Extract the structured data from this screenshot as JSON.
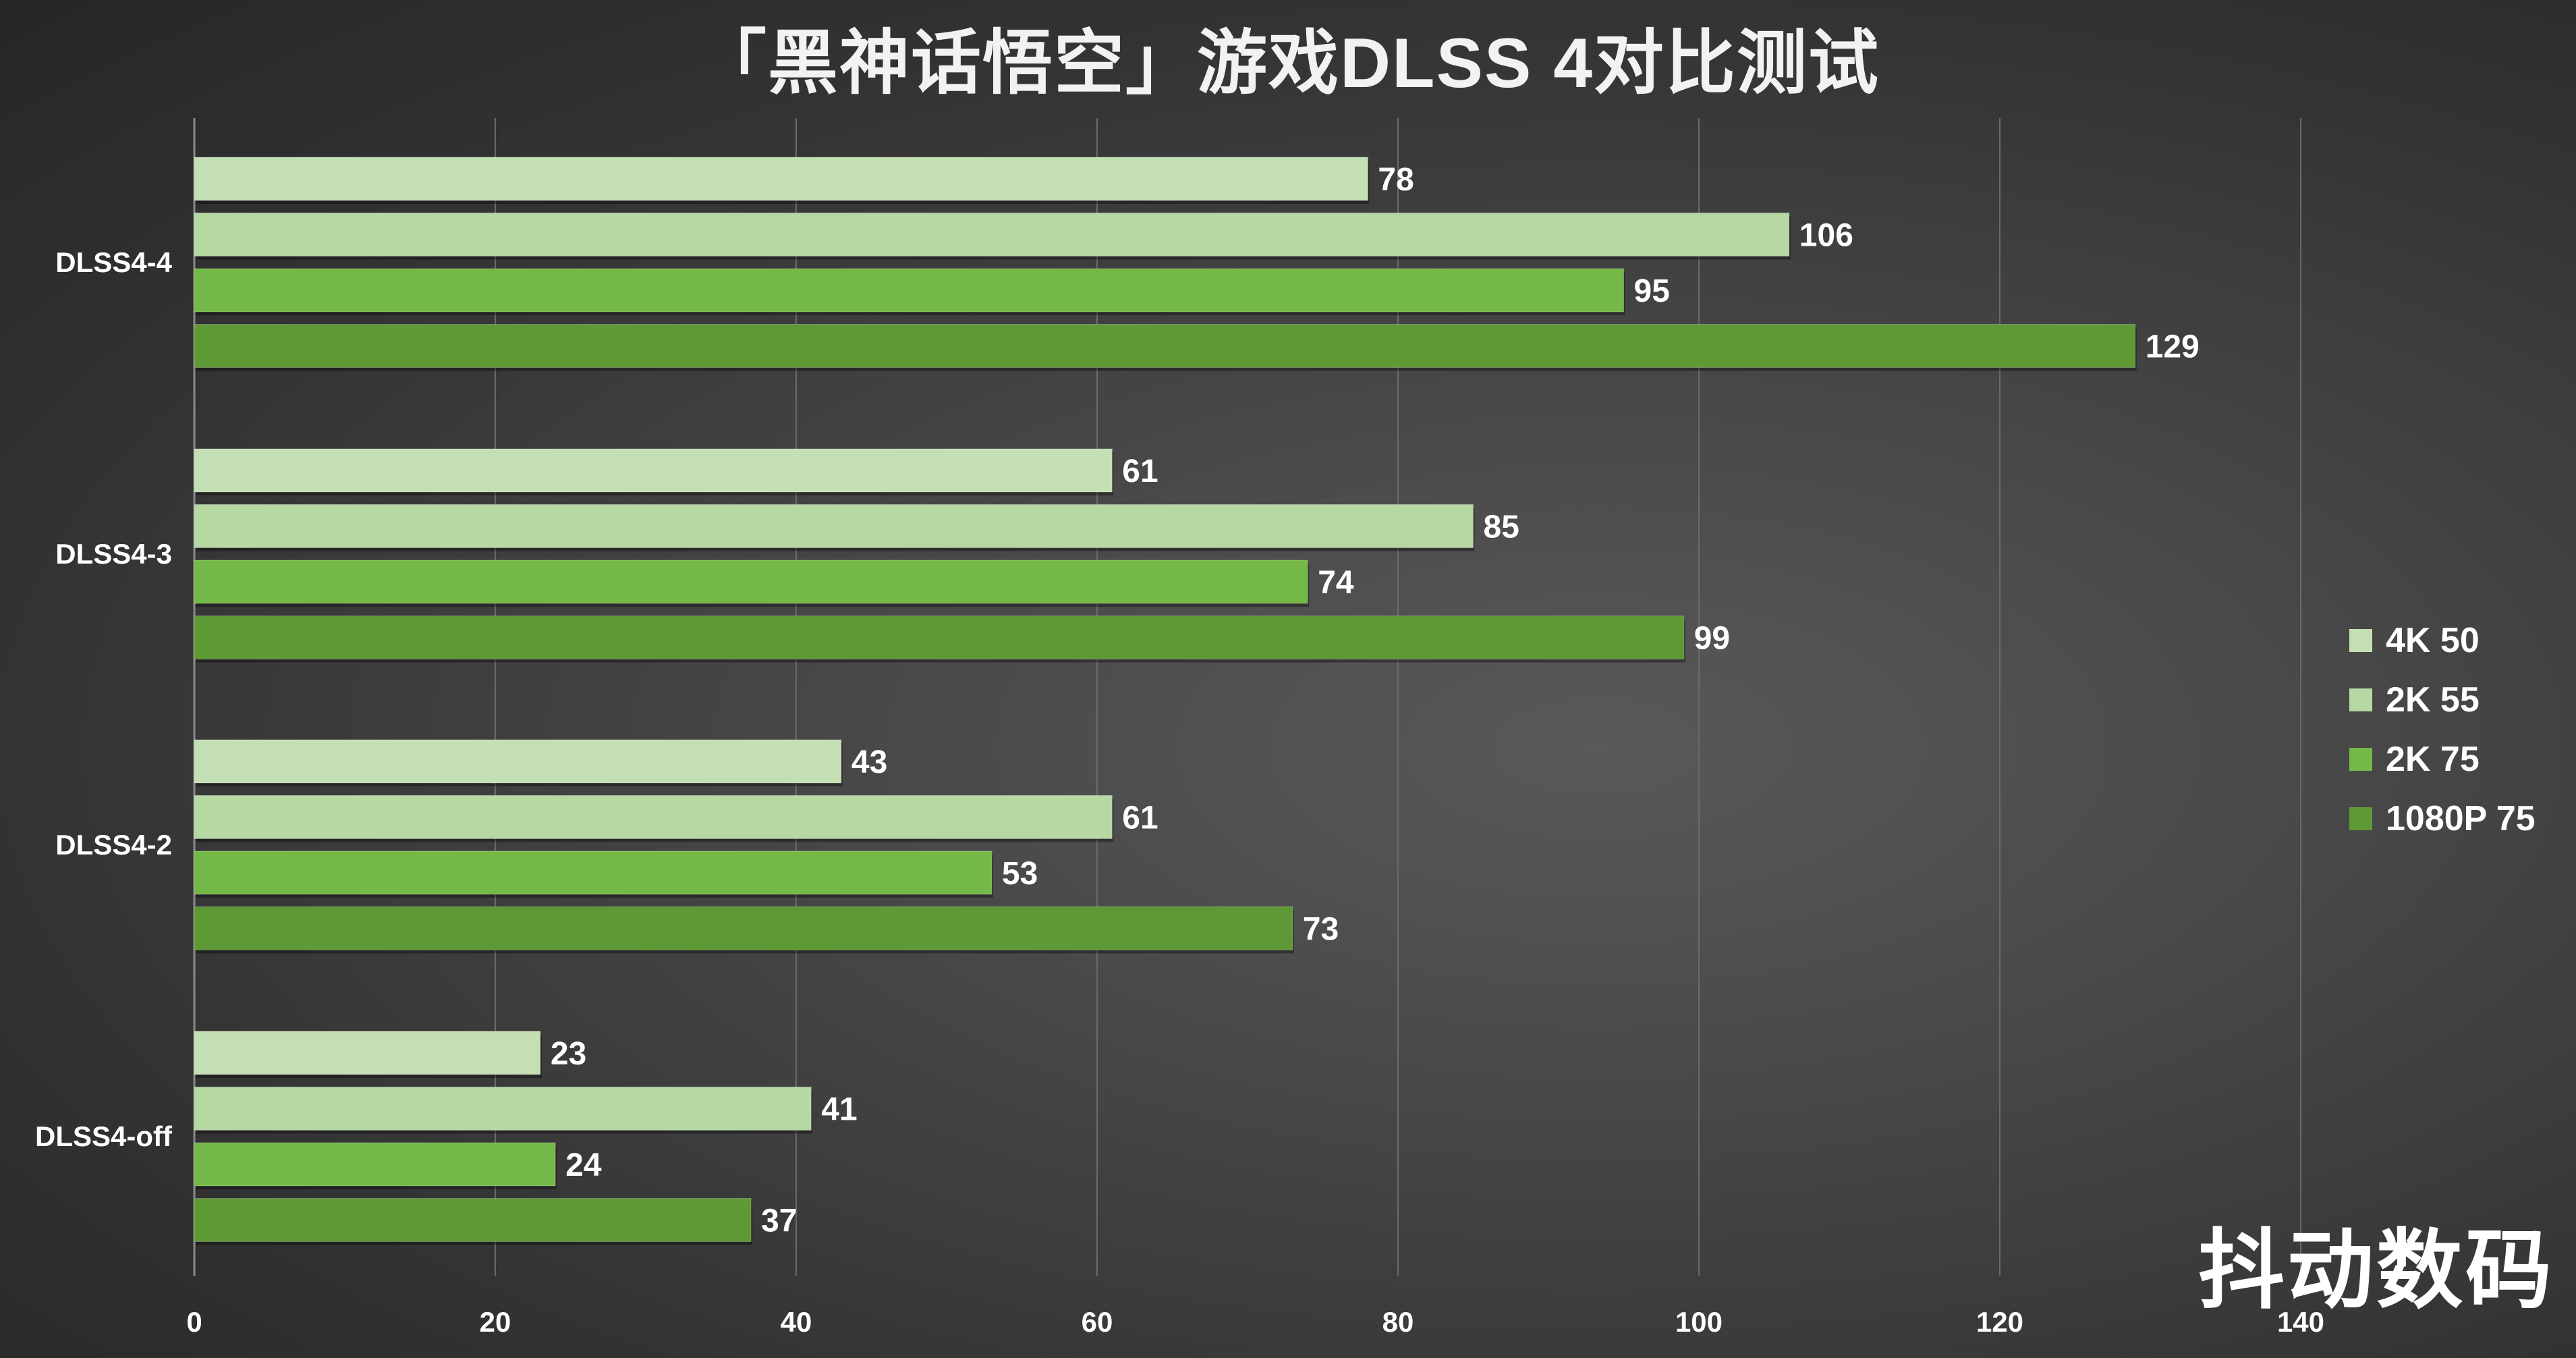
{
  "chart_data": {
    "type": "bar",
    "orientation": "horizontal",
    "title": "「黑神话悟空」游戏DLSS 4对比测试",
    "categories": [
      "DLSS4-4",
      "DLSS4-3",
      "DLSS4-2",
      "DLSS4-off"
    ],
    "series": [
      {
        "name": "4K 50",
        "color": "#c3dfb3",
        "values": [
          78,
          61,
          43,
          23
        ]
      },
      {
        "name": "2K 55",
        "color": "#b6d8a3",
        "values": [
          106,
          85,
          61,
          41
        ]
      },
      {
        "name": "2K 75",
        "color": "#74b947",
        "values": [
          95,
          74,
          53,
          24
        ]
      },
      {
        "name": "1080P 75",
        "color": "#5e9935",
        "values": [
          129,
          99,
          73,
          37
        ]
      }
    ],
    "x_ticks": [
      0,
      20,
      40,
      60,
      80,
      100,
      120,
      140
    ],
    "xlim": [
      0,
      140
    ],
    "grid": true,
    "legend_position": "right",
    "data_labels": true,
    "xlabel": "",
    "ylabel": ""
  },
  "watermark": "抖动数码"
}
